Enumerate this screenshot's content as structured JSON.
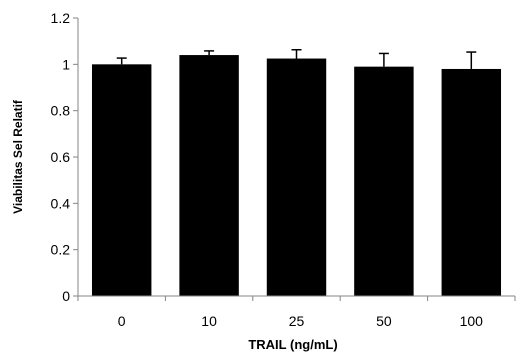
{
  "chart_data": {
    "type": "bar",
    "xlabel": "TRAIL (ng/mL)",
    "ylabel": "Viabilitas Sel Relatif",
    "categories": [
      "0",
      "10",
      "25",
      "50",
      "100"
    ],
    "values": [
      1.0,
      1.04,
      1.025,
      0.99,
      0.98
    ],
    "errors": [
      0.027,
      0.018,
      0.038,
      0.057,
      0.073
    ],
    "ylim": [
      0,
      1.2
    ],
    "yticks": [
      0,
      0.2,
      0.4,
      0.6,
      0.8,
      1,
      1.2
    ],
    "ytick_labels": [
      "0",
      "0.2",
      "0.4",
      "0.6",
      "0.8",
      "1",
      "1.2"
    ],
    "grid": false,
    "legend": "none",
    "bar_color": "#000000",
    "axis_color": "#868686"
  }
}
